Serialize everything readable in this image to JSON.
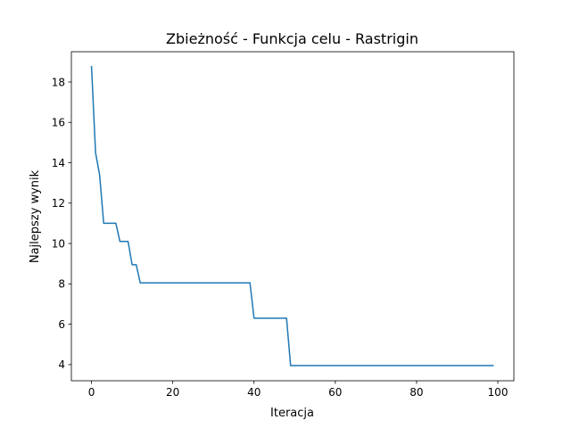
{
  "chart_data": {
    "type": "line",
    "title": "Zbieżność - Funkcja celu - Rastrigin",
    "xlabel": "Iteracja",
    "ylabel": "Najlepszy wynik",
    "xlim": [
      -4.95,
      103.95
    ],
    "ylim": [
      3.2,
      19.5
    ],
    "xticks": [
      0,
      20,
      40,
      60,
      80,
      100
    ],
    "yticks": [
      4,
      6,
      8,
      10,
      12,
      14,
      16,
      18
    ],
    "grid": false,
    "series": [
      {
        "color": "#1f77b4",
        "x": [
          0,
          1,
          2,
          3,
          4,
          5,
          6,
          7,
          8,
          9,
          10,
          11,
          12,
          13,
          14,
          15,
          16,
          17,
          18,
          19,
          20,
          21,
          22,
          23,
          24,
          25,
          26,
          27,
          28,
          29,
          30,
          31,
          32,
          33,
          34,
          35,
          36,
          37,
          38,
          39,
          40,
          41,
          42,
          43,
          44,
          45,
          46,
          47,
          48,
          49,
          50,
          51,
          52,
          53,
          54,
          55,
          56,
          57,
          58,
          59,
          60,
          61,
          62,
          63,
          64,
          65,
          66,
          67,
          68,
          69,
          70,
          71,
          72,
          73,
          74,
          75,
          76,
          77,
          78,
          79,
          80,
          81,
          82,
          83,
          84,
          85,
          86,
          87,
          88,
          89,
          90,
          91,
          92,
          93,
          94,
          95,
          96,
          97,
          98,
          99
        ],
        "y": [
          18.8,
          14.5,
          13.4,
          11.0,
          11.0,
          11.0,
          11.0,
          10.1,
          10.1,
          10.1,
          8.95,
          8.95,
          8.05,
          8.05,
          8.05,
          8.05,
          8.05,
          8.05,
          8.05,
          8.05,
          8.05,
          8.05,
          8.05,
          8.05,
          8.05,
          8.05,
          8.05,
          8.05,
          8.05,
          8.05,
          8.05,
          8.05,
          8.05,
          8.05,
          8.05,
          8.05,
          8.05,
          8.05,
          8.05,
          8.05,
          6.3,
          6.3,
          6.3,
          6.3,
          6.3,
          6.3,
          6.3,
          6.3,
          6.3,
          3.95,
          3.95,
          3.95,
          3.95,
          3.95,
          3.95,
          3.95,
          3.95,
          3.95,
          3.95,
          3.95,
          3.95,
          3.95,
          3.95,
          3.95,
          3.95,
          3.95,
          3.95,
          3.95,
          3.95,
          3.95,
          3.95,
          3.95,
          3.95,
          3.95,
          3.95,
          3.95,
          3.95,
          3.95,
          3.95,
          3.95,
          3.95,
          3.95,
          3.95,
          3.95,
          3.95,
          3.95,
          3.95,
          3.95,
          3.95,
          3.95,
          3.95,
          3.95,
          3.95,
          3.95,
          3.95,
          3.95,
          3.95,
          3.95,
          3.95,
          3.95
        ]
      }
    ]
  }
}
